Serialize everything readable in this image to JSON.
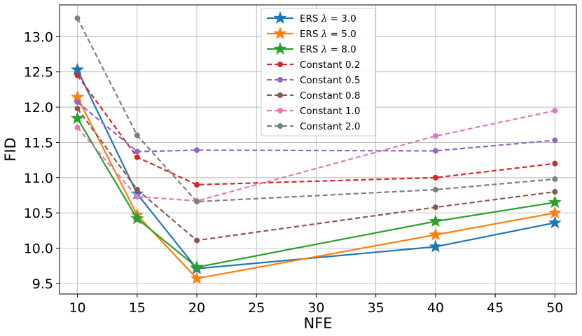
{
  "chart_data": {
    "type": "line",
    "xlabel": "NFE",
    "ylabel": "FID",
    "xlim": [
      8.5,
      51.8
    ],
    "ylim": [
      9.35,
      13.45
    ],
    "xticks": [
      10,
      15,
      20,
      25,
      30,
      35,
      40,
      45,
      50
    ],
    "xtick_labels": [
      "10",
      "15",
      "20",
      "25",
      "30",
      "35",
      "40",
      "45",
      "50"
    ],
    "yticks": [
      9.5,
      10.0,
      10.5,
      11.0,
      11.5,
      12.0,
      12.5,
      13.0
    ],
    "ytick_labels": [
      "9.5",
      "10.0",
      "10.5",
      "11.0",
      "11.5",
      "12.0",
      "12.5",
      "13.0"
    ],
    "x": [
      10,
      15,
      20,
      40,
      50
    ],
    "grid": true,
    "legend_position": "top-center",
    "series": [
      {
        "name": "ERS λ = 3.0",
        "label_pre": "ERS ",
        "label_sym": "λ",
        "label_post": " = 3.0",
        "color": "#1f77b4",
        "marker": "star",
        "dashed": false,
        "values": [
          12.53,
          10.77,
          9.71,
          10.02,
          10.36
        ]
      },
      {
        "name": "ERS λ = 5.0",
        "label_pre": "ERS ",
        "label_sym": "λ",
        "label_post": " = 5.0",
        "color": "#ff7f0e",
        "marker": "star",
        "dashed": false,
        "values": [
          12.14,
          10.47,
          9.57,
          10.19,
          10.5
        ]
      },
      {
        "name": "ERS λ = 8.0",
        "label_pre": "ERS ",
        "label_sym": "λ",
        "label_post": " = 8.0",
        "color": "#2ca02c",
        "marker": "star",
        "dashed": false,
        "values": [
          11.84,
          10.42,
          9.73,
          10.38,
          10.65
        ]
      },
      {
        "name": "Constant 0.2",
        "label_pre": "Constant 0.2",
        "label_sym": "",
        "label_post": "",
        "color": "#d62728",
        "marker": "circle",
        "dashed": true,
        "values": [
          12.45,
          11.29,
          10.9,
          11.0,
          11.2
        ]
      },
      {
        "name": "Constant 0.5",
        "label_pre": "Constant 0.5",
        "label_sym": "",
        "label_post": "",
        "color": "#9467bd",
        "marker": "circle",
        "dashed": true,
        "values": [
          12.07,
          11.37,
          11.39,
          11.38,
          11.53
        ]
      },
      {
        "name": "Constant 0.8",
        "label_pre": "Constant 0.8",
        "label_sym": "",
        "label_post": "",
        "color": "#8c564b",
        "marker": "circle",
        "dashed": true,
        "values": [
          11.98,
          10.83,
          10.11,
          10.58,
          10.8
        ]
      },
      {
        "name": "Constant 1.0",
        "label_pre": "Constant 1.0",
        "label_sym": "",
        "label_post": "",
        "color": "#e377c2",
        "marker": "circle",
        "dashed": true,
        "values": [
          11.71,
          10.73,
          10.67,
          11.59,
          11.95
        ]
      },
      {
        "name": "Constant 2.0",
        "label_pre": "Constant 2.0",
        "label_sym": "",
        "label_post": "",
        "color": "#7f7f7f",
        "marker": "circle",
        "dashed": true,
        "values": [
          13.26,
          11.6,
          10.66,
          10.83,
          10.98
        ]
      }
    ]
  }
}
